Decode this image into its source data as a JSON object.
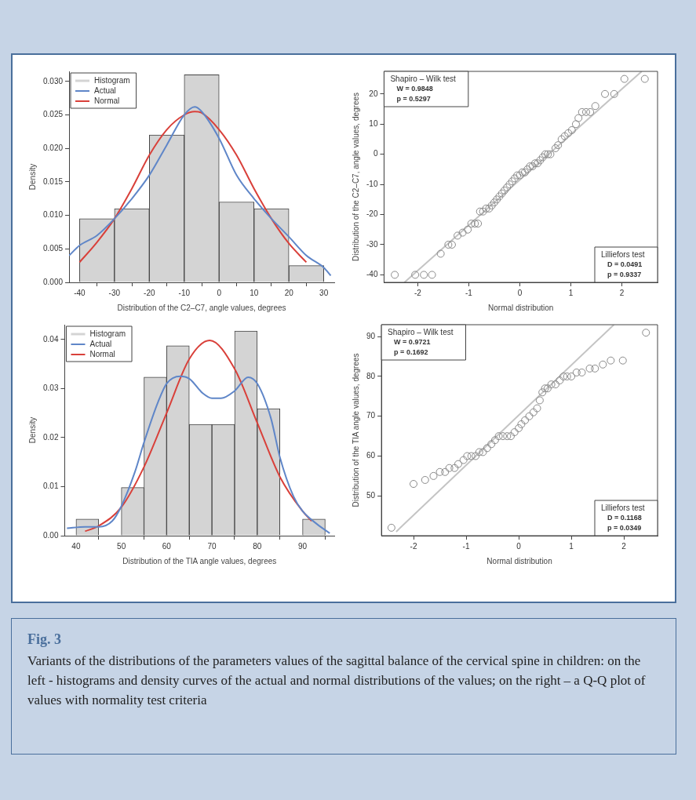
{
  "chart_data": [
    {
      "type": "histogram",
      "xlabel": "Distribution of the C2–C7, angle values, degrees",
      "ylabel": "Density",
      "bins": [
        -40,
        -30,
        -20,
        -10,
        0,
        10,
        20,
        30
      ],
      "xlim": [
        -43,
        33
      ],
      "xticks": [
        -40,
        -30,
        -20,
        -10,
        0,
        10,
        20,
        30
      ],
      "ylim": [
        0,
        0.0315
      ],
      "yticks": [
        {
          "value": 0,
          "label": "0.000"
        },
        {
          "value": 0.005,
          "label": "0.005"
        },
        {
          "value": 0.01,
          "label": "0.010"
        },
        {
          "value": 0.015,
          "label": "0.015"
        },
        {
          "value": 0.02,
          "label": "0.020"
        },
        {
          "value": 0.025,
          "label": "0.025"
        },
        {
          "value": 0.03,
          "label": "0.030"
        }
      ],
      "legend": "top left",
      "grid": false,
      "series": [
        {
          "name": "Histogram",
          "type": "histogram",
          "color": "#d4d4d4",
          "values": [
            0.0095,
            0.011,
            0.022,
            0.031,
            0.012,
            0.011,
            0.0025
          ]
        },
        {
          "name": "Actual",
          "type": "line",
          "color": "#5f86c8",
          "x": [
            -43,
            -40,
            -35,
            -30,
            -25,
            -20,
            -15,
            -10,
            -7,
            -5,
            0,
            5,
            10,
            15,
            20,
            25,
            30,
            32
          ],
          "values": [
            0.004,
            0.0055,
            0.007,
            0.0095,
            0.0125,
            0.016,
            0.0205,
            0.025,
            0.0262,
            0.0255,
            0.0215,
            0.016,
            0.0125,
            0.0095,
            0.0068,
            0.004,
            0.0022,
            0.001
          ]
        },
        {
          "name": "Normal",
          "type": "line",
          "color": "#d9403a",
          "x": [
            -40,
            -35,
            -30,
            -25,
            -20,
            -15,
            -10,
            -7,
            -5,
            0,
            5,
            10,
            15,
            20,
            25
          ],
          "values": [
            0.003,
            0.006,
            0.0095,
            0.014,
            0.019,
            0.0228,
            0.025,
            0.0255,
            0.0253,
            0.0228,
            0.019,
            0.014,
            0.0095,
            0.0058,
            0.003
          ]
        }
      ]
    },
    {
      "type": "scatter",
      "xlabel": "Normal distribution",
      "ylabel": "Distribution of the C2–C7, angle values, degrees",
      "xlim": [
        -2.66,
        2.7
      ],
      "xticks": [
        -2,
        -1,
        0,
        1,
        2
      ],
      "ylim": [
        -42.5,
        27.5
      ],
      "yticks": [
        -40,
        -30,
        -20,
        -10,
        0,
        10,
        20
      ],
      "grid": false,
      "annotations": [
        "Shapiro – Wilk test",
        "W = 0.9848",
        "p = 0.5297",
        "Lilliefors test",
        "D = 0.0491",
        "p = 0.9337"
      ],
      "series": [
        {
          "type": "scatter",
          "marker": "circle",
          "color": "#8a8a8a",
          "x": [
            -2.45,
            -2.05,
            -1.88,
            -1.72,
            -1.55,
            -1.4,
            -1.33,
            -1.22,
            -1.12,
            -1.02,
            -0.95,
            -0.88,
            -0.82,
            -0.78,
            -0.72,
            -0.66,
            -0.6,
            -0.55,
            -0.5,
            -0.45,
            -0.4,
            -0.35,
            -0.3,
            -0.25,
            -0.2,
            -0.15,
            -0.1,
            -0.05,
            0,
            0.05,
            0.1,
            0.15,
            0.2,
            0.25,
            0.3,
            0.35,
            0.4,
            0.45,
            0.5,
            0.55,
            0.6,
            0.7,
            0.75,
            0.82,
            0.88,
            0.95,
            1.02,
            1.1,
            1.15,
            1.22,
            1.3,
            1.38,
            1.48,
            1.67,
            1.85,
            2.05,
            2.45
          ],
          "values": [
            -40,
            -40,
            -40,
            -40,
            -33,
            -30,
            -30,
            -27,
            -26,
            -25,
            -23,
            -23,
            -23,
            -19,
            -19,
            -18,
            -18,
            -17,
            -16,
            -15,
            -14,
            -13,
            -12,
            -11,
            -10,
            -9,
            -8,
            -7,
            -7,
            -6,
            -6,
            -5,
            -4,
            -4,
            -3,
            -3,
            -2,
            -1,
            0,
            0,
            0,
            2,
            3,
            5,
            6,
            7,
            8,
            10,
            12,
            14,
            14,
            14,
            16,
            20,
            20,
            25,
            25
          ]
        },
        {
          "type": "line",
          "color": "#c4c4c4",
          "x": [
            -2.26,
            2.39
          ],
          "values": [
            -42.5,
            27.5
          ]
        }
      ]
    },
    {
      "type": "histogram",
      "xlabel": "Distribution of the TIA angle values, degrees",
      "ylabel": "Density",
      "bins": [
        40,
        45,
        50,
        55,
        60,
        65,
        70,
        75,
        80,
        85,
        90,
        95
      ],
      "xlim": [
        37.5,
        97
      ],
      "xticks": [
        40,
        50,
        60,
        70,
        80,
        90
      ],
      "ylim": [
        0,
        0.043
      ],
      "yticks": [
        {
          "value": 0,
          "label": "0.00"
        },
        {
          "value": 0.01,
          "label": "0.01"
        },
        {
          "value": 0.02,
          "label": "0.02"
        },
        {
          "value": 0.03,
          "label": "0.03"
        },
        {
          "value": 0.04,
          "label": "0.04"
        }
      ],
      "legend": "top left",
      "grid": false,
      "series": [
        {
          "name": "Histogram",
          "type": "histogram",
          "color": "#d4d4d4",
          "values": [
            0.0034,
            0,
            0.0098,
            0.0323,
            0.0387,
            0.0227,
            0.0227,
            0.0417,
            0.0259,
            0,
            0.0034
          ]
        },
        {
          "name": "Actual",
          "type": "line",
          "color": "#5f86c8",
          "x": [
            38,
            42,
            45,
            48,
            50,
            53,
            55,
            58,
            60,
            63,
            65,
            68,
            70,
            72,
            75,
            78,
            80,
            83,
            85,
            88,
            90,
            93,
            96
          ],
          "values": [
            0.0015,
            0.0018,
            0.0018,
            0.003,
            0.006,
            0.013,
            0.019,
            0.027,
            0.031,
            0.0325,
            0.032,
            0.029,
            0.028,
            0.028,
            0.0295,
            0.0323,
            0.031,
            0.024,
            0.016,
            0.008,
            0.005,
            0.0025,
            0.0005
          ]
        },
        {
          "name": "Normal",
          "type": "line",
          "color": "#d9403a",
          "x": [
            42,
            45,
            50,
            55,
            60,
            65,
            69.5,
            75,
            80,
            85,
            90,
            92
          ],
          "values": [
            0.0009,
            0.002,
            0.0058,
            0.014,
            0.025,
            0.036,
            0.0398,
            0.034,
            0.023,
            0.012,
            0.005,
            0.003
          ]
        }
      ]
    },
    {
      "type": "scatter",
      "xlabel": "Normal distribution",
      "ylabel": "Distribution of the TIA angle values, degrees",
      "xlim": [
        -2.61,
        2.64
      ],
      "xticks": [
        -2,
        -1,
        0,
        1,
        2
      ],
      "ylim": [
        40,
        93
      ],
      "yticks": [
        50,
        60,
        70,
        80,
        90
      ],
      "grid": false,
      "annotations": [
        "Shapiro – Wilk test",
        "W = 0.9721",
        "p = 0.1692",
        "Lilliefors test",
        "D = 0.1168",
        "p = 0.0349"
      ],
      "series": [
        {
          "type": "scatter",
          "marker": "circle",
          "color": "#8a8a8a",
          "x": [
            -2.42,
            -2.0,
            -1.78,
            -1.62,
            -1.5,
            -1.4,
            -1.32,
            -1.22,
            -1.15,
            -1.05,
            -0.98,
            -0.9,
            -0.82,
            -0.75,
            -0.68,
            -0.6,
            -0.52,
            -0.45,
            -0.38,
            -0.3,
            -0.22,
            -0.15,
            -0.08,
            0,
            0.05,
            0.12,
            0.2,
            0.28,
            0.35,
            0.4,
            0.45,
            0.5,
            0.55,
            0.62,
            0.7,
            0.78,
            0.85,
            0.92,
            1.0,
            1.1,
            1.2,
            1.35,
            1.45,
            1.6,
            1.75,
            1.98,
            2.42
          ],
          "values": [
            42,
            53,
            54,
            55,
            56,
            56,
            57,
            57,
            58,
            59,
            60,
            60,
            60,
            61,
            61,
            62,
            63,
            64,
            65,
            65,
            65,
            65,
            66,
            67,
            68,
            69,
            70,
            71,
            72,
            74,
            76,
            77,
            77,
            78,
            78,
            79,
            80,
            80,
            80,
            81,
            81,
            82,
            82,
            83,
            84,
            84,
            91
          ]
        },
        {
          "type": "line",
          "color": "#c4c4c4",
          "x": [
            -2.33,
            1.81
          ],
          "values": [
            41,
            93
          ]
        }
      ]
    },
    {
      "type": "other",
      "title": "Fig. 3",
      "annotations": [
        "Variants of the distributions of the parameters values of the sagittal balance of the cervical spine in children: on the left - histograms and density curves of the actual and normal distributions of the values; on the right – a Q-Q plot of values with normality test criteria"
      ]
    }
  ]
}
